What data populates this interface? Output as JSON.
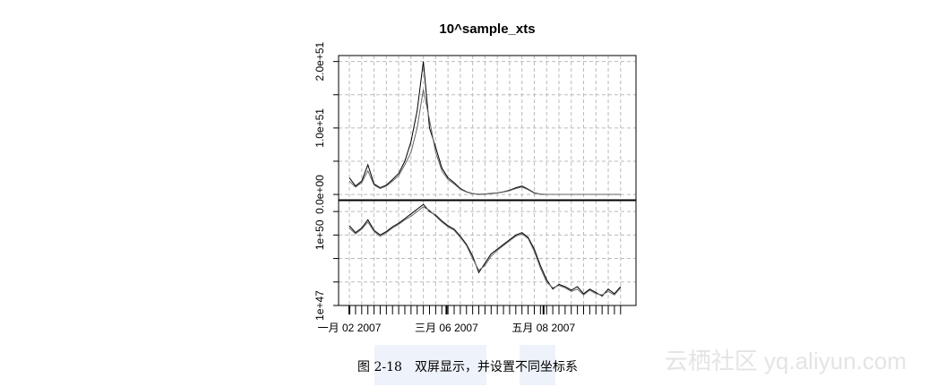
{
  "chart_data": [
    {
      "type": "line",
      "title": "10^sample_xts",
      "log_scale": false,
      "grid": true,
      "x": [
        "2007-01-02",
        "2007-01-06",
        "2007-01-10",
        "2007-01-14",
        "2007-01-18",
        "2007-01-22",
        "2007-01-26",
        "2007-01-30",
        "2007-02-03",
        "2007-02-07",
        "2007-02-11",
        "2007-02-15",
        "2007-02-19",
        "2007-02-23",
        "2007-02-27",
        "2007-03-03",
        "2007-03-07",
        "2007-03-11",
        "2007-03-15",
        "2007-03-19",
        "2007-03-23",
        "2007-03-27",
        "2007-03-31",
        "2007-04-04",
        "2007-04-08",
        "2007-04-12",
        "2007-04-16",
        "2007-04-20",
        "2007-04-24",
        "2007-04-28",
        "2007-05-02",
        "2007-05-06",
        "2007-05-10",
        "2007-05-14",
        "2007-05-18",
        "2007-05-22",
        "2007-05-26",
        "2007-05-30",
        "2007-06-03",
        "2007-06-07",
        "2007-06-11",
        "2007-06-15",
        "2007-06-19",
        "2007-06-23",
        "2007-06-27"
      ],
      "xlim": [
        "2006-12-26",
        "2007-07-07"
      ],
      "ylim": [
        -8e+49,
        2.09e+51
      ],
      "yticks": [
        {
          "value": 0,
          "label": "0.0e+00"
        },
        {
          "value": 1e+51,
          "label": "1.0e+51"
        },
        {
          "value": 2e+51,
          "label": "2.0e+51"
        }
      ],
      "minor_yticks": [
        5e+50,
        1.5e+51
      ],
      "series": [
        {
          "color": "#000000",
          "values": [
            2.51e+50,
            1.26e+50,
            2e+50,
            4.47e+50,
            1.58e+50,
            1e+50,
            1.41e+50,
            2.24e+50,
            3.16e+50,
            5.01e+50,
            7.94e+50,
            1.26e+51,
            2e+51,
            1e+51,
            7.08e+50,
            3.98e+50,
            2.51e+50,
            1.78e+50,
            8.91e+49,
            3.98e+49,
            1.26e+49,
            2.51e+48,
            6.31e+48,
            1.58e+49,
            2.51e+49,
            3.98e+49,
            6.31e+49,
            1e+50,
            1.26e+50,
            7.94e+49,
            2.51e+49,
            5.01e+48,
            1.26e+48,
            5.01e+47,
            7.94e+47,
            6.31e+47,
            4.47e+47,
            6.31e+47,
            3.16e+47,
            5.01e+47,
            3.55e+47,
            2.51e+47,
            5.01e+47,
            3.16e+47,
            6.31e+47
          ]
        },
        {
          "color": "#666666",
          "values": [
            2e+50,
            1.12e+50,
            1.78e+50,
            3.55e+50,
            1.41e+50,
            8.91e+49,
            1.26e+50,
            2e+50,
            2.82e+50,
            4.47e+50,
            6.31e+50,
            1e+51,
            1.58e+51,
            1.12e+51,
            6.31e+50,
            3.55e+50,
            2.24e+50,
            1.58e+50,
            7.94e+49,
            3.55e+49,
            1e+49,
            3.16e+48,
            5.01e+48,
            1.26e+49,
            2.24e+49,
            3.55e+49,
            5.62e+49,
            8.91e+49,
            1.12e+50,
            7.08e+49,
            2e+49,
            3.98e+48,
            1e+48,
            5.62e+47,
            7.08e+47,
            5.62e+47,
            3.98e+47,
            5.01e+47,
            2.82e+47,
            4.47e+47,
            3.16e+47,
            2.82e+47,
            3.98e+47,
            2.82e+47,
            5.62e+47
          ]
        }
      ]
    },
    {
      "type": "line",
      "log_scale": true,
      "grid": true,
      "x": [
        "2007-01-02",
        "2007-01-06",
        "2007-01-10",
        "2007-01-14",
        "2007-01-18",
        "2007-01-22",
        "2007-01-26",
        "2007-01-30",
        "2007-02-03",
        "2007-02-07",
        "2007-02-11",
        "2007-02-15",
        "2007-02-19",
        "2007-02-23",
        "2007-02-27",
        "2007-03-03",
        "2007-03-07",
        "2007-03-11",
        "2007-03-15",
        "2007-03-19",
        "2007-03-23",
        "2007-03-27",
        "2007-03-31",
        "2007-04-04",
        "2007-04-08",
        "2007-04-12",
        "2007-04-16",
        "2007-04-20",
        "2007-04-24",
        "2007-04-28",
        "2007-05-02",
        "2007-05-06",
        "2007-05-10",
        "2007-05-14",
        "2007-05-18",
        "2007-05-22",
        "2007-05-26",
        "2007-05-30",
        "2007-06-03",
        "2007-06-07",
        "2007-06-11",
        "2007-06-15",
        "2007-06-19",
        "2007-06-23",
        "2007-06-27"
      ],
      "xlim": [
        "2006-12-26",
        "2007-07-07"
      ],
      "xticks": [
        {
          "value": "2007-01-02",
          "label": "一月 02 2007"
        },
        {
          "value": "2007-03-06",
          "label": "三月 06 2007"
        },
        {
          "value": "2007-05-08",
          "label": "五月 08 2007"
        }
      ],
      "ylim": [
        1e+47,
        2.9e+51
      ],
      "yticks": [
        {
          "value": 1e+47,
          "label": "1e+47"
        },
        {
          "value": 1e+50,
          "label": "1e+50"
        }
      ],
      "minor_yticks": [
        1e+48,
        1e+49,
        1e+51
      ],
      "series": [
        {
          "color": "#000000",
          "values": [
            2.51e+50,
            1.26e+50,
            2e+50,
            4.47e+50,
            1.58e+50,
            1e+50,
            1.41e+50,
            2.24e+50,
            3.16e+50,
            5.01e+50,
            7.94e+50,
            1.26e+51,
            2e+51,
            1e+51,
            7.08e+50,
            3.98e+50,
            2.51e+50,
            1.78e+50,
            8.91e+49,
            3.98e+49,
            1.26e+49,
            2.51e+48,
            6.31e+48,
            1.58e+49,
            2.51e+49,
            3.98e+49,
            6.31e+49,
            1e+50,
            1.26e+50,
            7.94e+49,
            2.51e+49,
            5.01e+48,
            1.26e+48,
            5.01e+47,
            7.94e+47,
            6.31e+47,
            4.47e+47,
            6.31e+47,
            3.16e+47,
            5.01e+47,
            3.55e+47,
            2.51e+47,
            5.01e+47,
            3.16e+47,
            6.31e+47
          ]
        },
        {
          "color": "#666666",
          "values": [
            2e+50,
            1.12e+50,
            1.78e+50,
            3.55e+50,
            1.41e+50,
            8.91e+49,
            1.26e+50,
            2e+50,
            2.82e+50,
            4.47e+50,
            6.31e+50,
            1e+51,
            1.58e+51,
            1.12e+51,
            6.31e+50,
            3.55e+50,
            2.24e+50,
            1.58e+50,
            7.94e+49,
            3.55e+49,
            1e+49,
            3.16e+48,
            5.01e+48,
            1.26e+49,
            2.24e+49,
            3.55e+49,
            5.62e+49,
            8.91e+49,
            1.12e+50,
            7.08e+49,
            2e+49,
            3.98e+48,
            1e+48,
            5.62e+47,
            7.08e+47,
            5.62e+47,
            3.98e+47,
            5.01e+47,
            2.82e+47,
            4.47e+47,
            3.16e+47,
            2.82e+47,
            3.98e+47,
            2.82e+47,
            5.62e+47
          ]
        }
      ]
    }
  ],
  "caption": "图 2-18　双屏显示，并设置不同坐标系",
  "watermark": "云栖社区 yq.aliyun.com"
}
